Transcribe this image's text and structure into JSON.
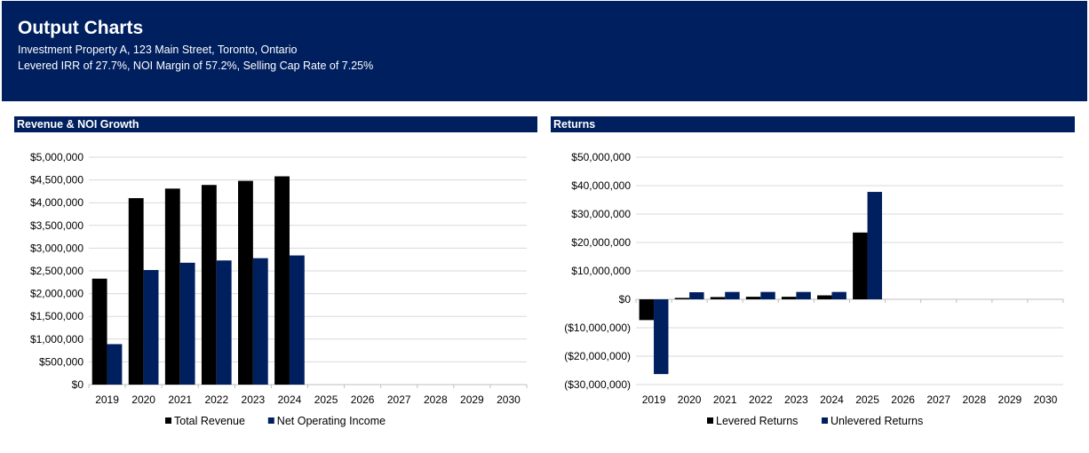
{
  "header": {
    "title": "Output Charts",
    "subtitle_1": "Investment Property A, 123 Main Street, Toronto, Ontario",
    "subtitle_2": "Levered IRR of 27.7%, NOI Margin of 57.2%, Selling Cap Rate of 7.25%"
  },
  "colors": {
    "banner": "#001f5f",
    "series_1": "#000000",
    "series_2": "#001f5f",
    "grid": "#d9d9d9"
  },
  "chart_data": [
    {
      "type": "bar",
      "title": "Revenue & NOI Growth",
      "categories": [
        "2019",
        "2020",
        "2021",
        "2022",
        "2023",
        "2024",
        "2025",
        "2026",
        "2027",
        "2028",
        "2029",
        "2030"
      ],
      "series": [
        {
          "name": "Total Revenue",
          "values": [
            2330000,
            4100000,
            4310000,
            4390000,
            4480000,
            4580000,
            0,
            0,
            0,
            0,
            0,
            0
          ]
        },
        {
          "name": "Net Operating Income",
          "values": [
            890000,
            2520000,
            2680000,
            2730000,
            2780000,
            2840000,
            0,
            0,
            0,
            0,
            0,
            0
          ]
        }
      ],
      "ylim": [
        0,
        5000000
      ],
      "yticks": [
        0,
        500000,
        1000000,
        1500000,
        2000000,
        2500000,
        3000000,
        3500000,
        4000000,
        4500000,
        5000000
      ],
      "ytick_labels": [
        "$0",
        "$500,000",
        "$1,000,000",
        "$1,500,000",
        "$2,000,000",
        "$2,500,000",
        "$3,000,000",
        "$3,500,000",
        "$4,000,000",
        "$4,500,000",
        "$5,000,000"
      ],
      "grid": true,
      "legend": "bottom"
    },
    {
      "type": "bar",
      "title": "Returns",
      "categories": [
        "2019",
        "2020",
        "2021",
        "2022",
        "2023",
        "2024",
        "2025",
        "2026",
        "2027",
        "2028",
        "2029",
        "2030"
      ],
      "series": [
        {
          "name": "Levered Returns",
          "values": [
            -7300000,
            500000,
            800000,
            900000,
            900000,
            1400000,
            23500000,
            0,
            0,
            0,
            0,
            0
          ]
        },
        {
          "name": "Unlevered Returns",
          "values": [
            -26300000,
            2500000,
            2600000,
            2600000,
            2600000,
            2600000,
            37800000,
            0,
            0,
            0,
            0,
            0
          ]
        }
      ],
      "ylim": [
        -30000000,
        50000000
      ],
      "yticks": [
        -30000000,
        -20000000,
        -10000000,
        0,
        10000000,
        20000000,
        30000000,
        40000000,
        50000000
      ],
      "ytick_labels": [
        "($30,000,000)",
        "($20,000,000)",
        "($10,000,000)",
        "$0",
        "$10,000,000",
        "$20,000,000",
        "$30,000,000",
        "$40,000,000",
        "$50,000,000"
      ],
      "grid": true,
      "legend": "bottom"
    }
  ]
}
